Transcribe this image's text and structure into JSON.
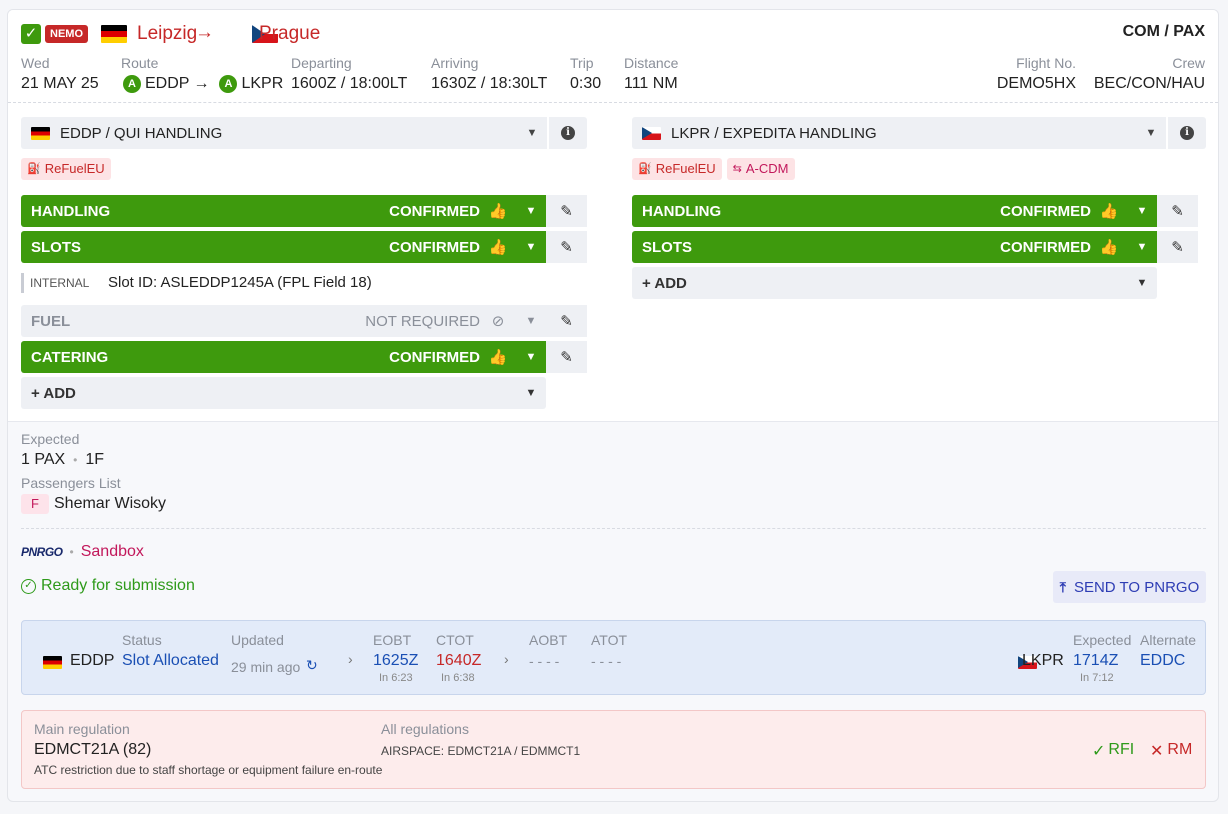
{
  "header": {
    "badge": "NEMO",
    "from_city": "Leipzig",
    "arrow": "→",
    "to_city": "Prague",
    "type": "COM / PAX"
  },
  "flight": {
    "day_label": "Wed",
    "date": "21 MAY 25",
    "route_label": "Route",
    "route_from_badge": "A",
    "route_from": "EDDP",
    "route_arrow": "→",
    "route_to_badge": "A",
    "route_to": "LKPR",
    "departing_label": "Departing",
    "departing": "1600Z / 18:00LT",
    "arriving_label": "Arriving",
    "arriving": "1630Z / 18:30LT",
    "trip_label": "Trip",
    "trip": "0:30",
    "distance_label": "Distance",
    "distance": "111 NM",
    "flight_no_label": "Flight No.",
    "flight_no": "DEMO5HX",
    "crew_label": "Crew",
    "crew": "BEC/CON/HAU"
  },
  "left": {
    "handler": "EDDP / QUI HANDLING",
    "tags": [
      "ReFuelEU"
    ],
    "services": [
      {
        "label": "HANDLING",
        "status": "CONFIRMED"
      },
      {
        "label": "SLOTS",
        "status": "CONFIRMED"
      }
    ],
    "internal_label": "INTERNAL",
    "internal_note": "Slot ID: ASLEDDP1245A (FPL Field 18)",
    "fuel": {
      "label": "FUEL",
      "status": "NOT REQUIRED"
    },
    "catering": {
      "label": "CATERING",
      "status": "CONFIRMED"
    },
    "add_label": "+ ADD"
  },
  "right": {
    "handler": "LKPR / EXPEDITA HANDLING",
    "tags": [
      "ReFuelEU",
      "A-CDM"
    ],
    "services": [
      {
        "label": "HANDLING",
        "status": "CONFIRMED"
      },
      {
        "label": "SLOTS",
        "status": "CONFIRMED"
      }
    ],
    "add_label": "+ ADD"
  },
  "pax": {
    "expected_label": "Expected",
    "count": "1 PAX",
    "sep": "•",
    "class": "1F",
    "list_label": "Passengers List",
    "passenger_class": "F",
    "passenger_name": "Shemar Wisoky"
  },
  "pnrgo": {
    "logo": "PNRGO",
    "sep": "•",
    "env": "Sandbox",
    "ready": "Ready for submission",
    "send_label": "SEND TO PNRGO"
  },
  "slot": {
    "dep": "EDDP",
    "status_label": "Status",
    "status": "Slot Allocated",
    "updated_label": "Updated",
    "updated": "29 min ago",
    "eobt_label": "EOBT",
    "eobt": "1625Z",
    "eobt_in": "In 6:23",
    "ctot_label": "CTOT",
    "ctot": "1640Z",
    "ctot_in": "In 6:38",
    "aobt_label": "AOBT",
    "aobt": "- - - -",
    "atot_label": "ATOT",
    "atot": "- - - -",
    "arr": "LKPR",
    "expected_label": "Expected",
    "expected": "1714Z",
    "expected_in": "In 7:12",
    "alternate_label": "Alternate",
    "alternate": "EDDC"
  },
  "regulation": {
    "main_label": "Main regulation",
    "main": "EDMCT21A (82)",
    "desc": "ATC restriction due to staff shortage or equipment failure en-route",
    "all_label": "All regulations",
    "all": "AIRSPACE: EDMCT21A / EDMMCT1",
    "rfi": "RFI",
    "rm": "RM"
  },
  "colors": {
    "green": "#3e9a0d",
    "red": "#c62828",
    "blue": "#1a4fb4"
  }
}
